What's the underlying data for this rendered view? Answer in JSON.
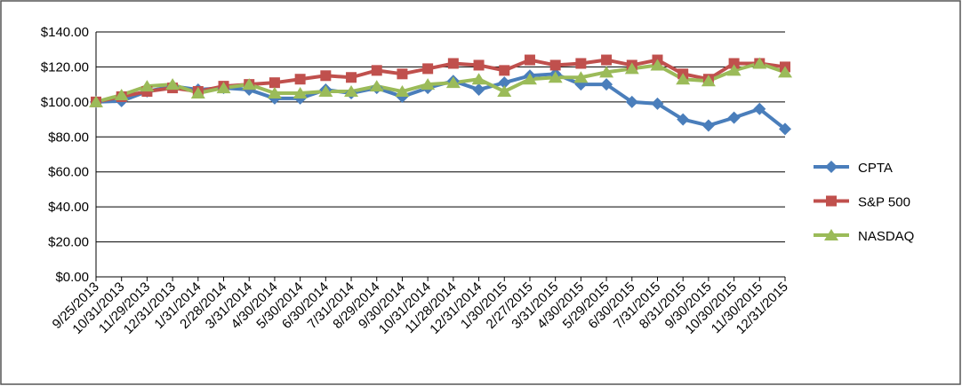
{
  "chart_data": {
    "type": "line",
    "categories": [
      "9/25/2013",
      "10/31/2013",
      "11/29/2013",
      "12/31/2013",
      "1/31/2014",
      "2/28/2014",
      "3/31/2014",
      "4/30/2014",
      "5/30/2014",
      "6/30/2014",
      "7/31/2014",
      "8/29/2014",
      "9/30/2014",
      "10/31/2014",
      "11/28/2014",
      "12/31/2014",
      "1/30/2015",
      "2/27/2015",
      "3/31/2015",
      "4/30/2015",
      "5/29/2015",
      "6/30/2015",
      "7/31/2015",
      "8/31/2015",
      "9/30/2015",
      "10/30/2015",
      "11/30/2015",
      "12/31/2015"
    ],
    "series": [
      {
        "name": "CPTA",
        "color": "#4a7ebb",
        "marker": "diamond",
        "values": [
          100,
          100.5,
          106,
          109,
          107,
          108,
          107,
          102,
          102,
          107,
          105,
          108,
          103,
          108,
          112,
          107,
          111,
          115,
          116,
          110,
          110,
          100,
          99,
          90,
          86.5,
          91,
          96,
          84.5
        ]
      },
      {
        "name": "S&P 500",
        "color": "#c0504d",
        "marker": "square",
        "values": [
          100,
          103,
          106,
          108,
          106,
          109,
          110,
          111,
          113,
          115,
          114,
          118,
          116,
          119,
          122,
          121,
          118,
          124,
          121,
          122,
          124,
          121,
          124,
          116,
          113,
          122,
          122,
          120
        ]
      },
      {
        "name": "NASDAQ",
        "color": "#9bbb59",
        "marker": "triangle",
        "values": [
          100,
          104,
          109,
          110,
          105,
          108,
          110,
          105,
          105,
          106,
          106,
          109,
          106,
          110,
          111,
          113,
          106,
          113,
          114,
          114,
          117,
          119,
          121,
          113,
          112,
          118,
          122,
          117
        ]
      }
    ],
    "ylim": [
      0,
      140
    ],
    "yticks": [
      {
        "value": 0,
        "label": "$0.00"
      },
      {
        "value": 20,
        "label": "$20.00"
      },
      {
        "value": 40,
        "label": "$40.00"
      },
      {
        "value": 60,
        "label": "$60.00"
      },
      {
        "value": 80,
        "label": "$80.00"
      },
      {
        "value": 100,
        "label": "$100.00"
      },
      {
        "value": 120,
        "label": "$120.00"
      },
      {
        "value": 140,
        "label": "$140.00"
      }
    ],
    "grid": true,
    "legend": "right"
  }
}
